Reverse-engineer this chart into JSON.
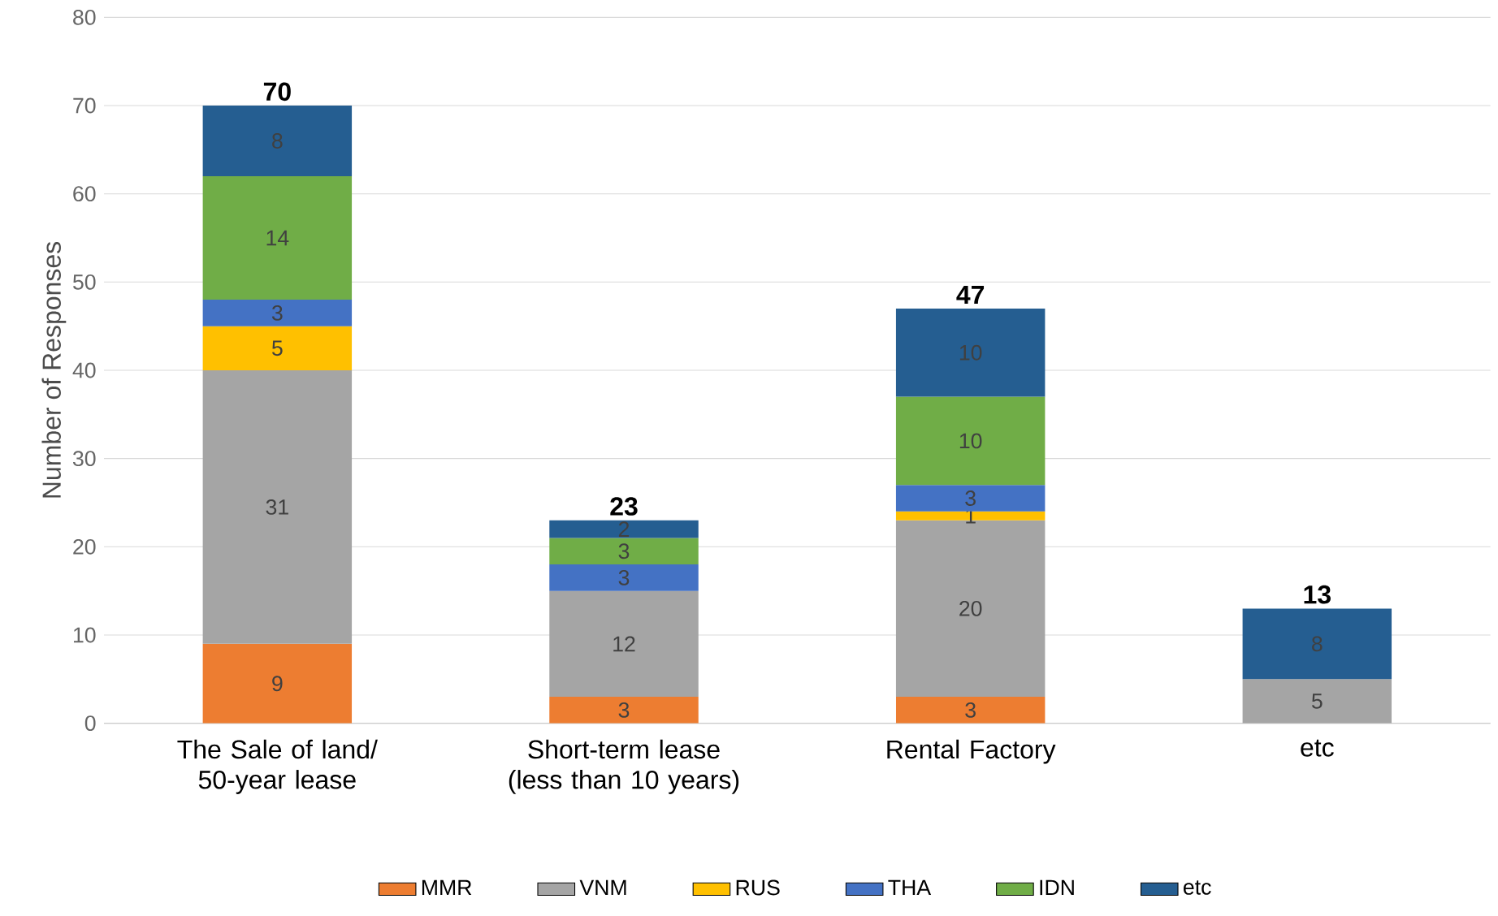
{
  "chart_data": {
    "type": "bar",
    "stacked": true,
    "categories": [
      "The Sale of land/ 50-year lease",
      "Short-term lease (less than 10 years)",
      "Rental Factory",
      "etc"
    ],
    "series": [
      {
        "name": "MMR",
        "color": "#ed7d31",
        "values": [
          9,
          3,
          3,
          null
        ]
      },
      {
        "name": "VNM",
        "color": "#a5a5a5",
        "values": [
          31,
          12,
          20,
          5
        ]
      },
      {
        "name": "RUS",
        "color": "#ffc000",
        "values": [
          5,
          null,
          1,
          null
        ]
      },
      {
        "name": "THA",
        "color": "#4472c4",
        "values": [
          3,
          3,
          3,
          null
        ]
      },
      {
        "name": "IDN",
        "color": "#70ad47",
        "values": [
          14,
          3,
          10,
          null
        ]
      },
      {
        "name": "etc",
        "color": "#255e91",
        "values": [
          8,
          2,
          10,
          8
        ]
      }
    ],
    "ylabel": "Number of Responses",
    "ylim": [
      0,
      80
    ],
    "yticks": [
      0,
      10,
      20,
      30,
      40,
      50,
      60,
      70,
      80
    ],
    "grid": "y",
    "legend": "bottom",
    "data_labels": true,
    "totals": [
      "70",
      "23",
      "47",
      "13"
    ]
  }
}
